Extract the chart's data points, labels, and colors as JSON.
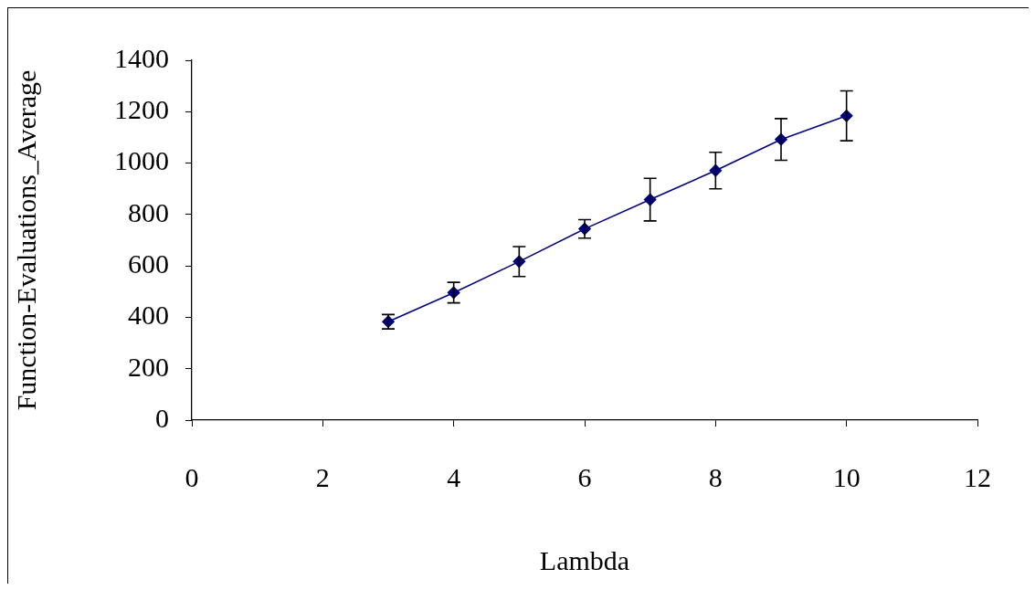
{
  "chart_data": {
    "type": "line",
    "xlabel": "Lambda",
    "ylabel": "Function-Evaluations_Average",
    "x": [
      3,
      4,
      5,
      6,
      7,
      8,
      9,
      10
    ],
    "series": [
      {
        "color": "#000080",
        "values": [
          383,
          496,
          617,
          744,
          858,
          971,
          1092,
          1184
        ],
        "errors": [
          28,
          40,
          58,
          36,
          83,
          71,
          81,
          97
        ]
      }
    ],
    "marker": "diamond",
    "line_style": "solid",
    "xlim": [
      0,
      12
    ],
    "xticks": [
      0,
      2,
      4,
      6,
      8,
      10,
      12
    ],
    "ylim": [
      0,
      1400
    ],
    "yticks": [
      0,
      200,
      400,
      600,
      800,
      1000,
      1200,
      1400
    ]
  }
}
